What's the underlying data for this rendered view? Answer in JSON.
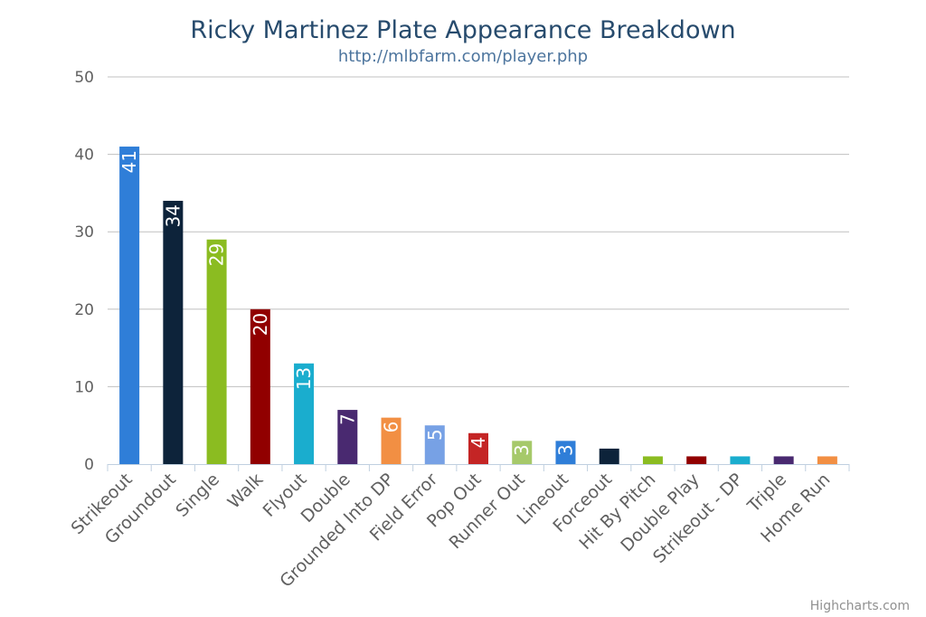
{
  "chart_data": {
    "type": "bar",
    "title": "Ricky Martinez Plate Appearance Breakdown",
    "subtitle": "http://mlbfarm.com/player.php",
    "categories": [
      "Strikeout",
      "Groundout",
      "Single",
      "Walk",
      "Flyout",
      "Double",
      "Grounded Into DP",
      "Field Error",
      "Pop Out",
      "Runner Out",
      "Lineout",
      "Forceout",
      "Hit By Pitch",
      "Double Play",
      "Strikeout - DP",
      "Triple",
      "Home Run"
    ],
    "values": [
      41,
      34,
      29,
      20,
      13,
      7,
      6,
      5,
      4,
      3,
      3,
      2,
      1,
      1,
      1,
      1,
      1
    ],
    "data_labels": [
      "41",
      "34",
      "29",
      "20",
      "13",
      "7",
      "6",
      "5",
      "4",
      "3",
      "3",
      "",
      "",
      "",
      "",
      "",
      ""
    ],
    "colors": [
      "#2f7ed8",
      "#0d233a",
      "#8bbc21",
      "#910000",
      "#1aadce",
      "#492970",
      "#f28f43",
      "#77a1e5",
      "#c42525",
      "#a6c96a",
      "#2f7ed8",
      "#0d233a",
      "#8bbc21",
      "#910000",
      "#1aadce",
      "#492970",
      "#f28f43"
    ],
    "ylim": [
      0,
      50
    ],
    "yticks": [
      0,
      10,
      20,
      30,
      40,
      50
    ],
    "xlabel": "",
    "ylabel": "",
    "grid": true,
    "legend": "none"
  },
  "credits": "Highcharts.com"
}
